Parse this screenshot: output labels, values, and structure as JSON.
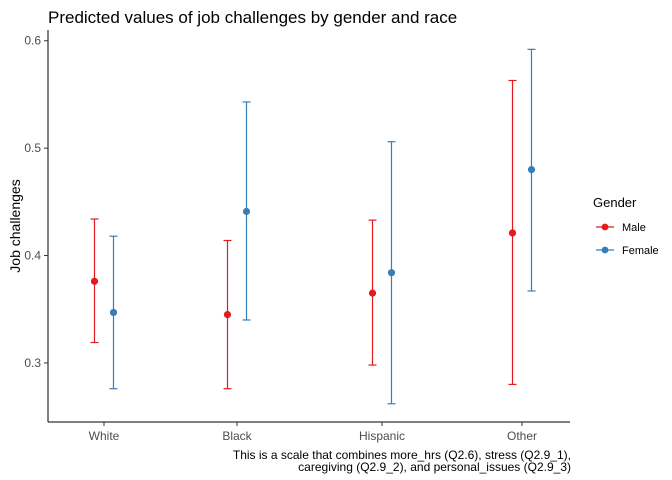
{
  "chart_data": {
    "type": "scatter",
    "title": "Predicted values of job challenges by gender and race",
    "xlabel": "",
    "ylabel": "Job challenges",
    "categories": [
      "White",
      "Black",
      "Hispanic",
      "Other"
    ],
    "ylim": [
      0.245,
      0.61
    ],
    "yticks": [
      0.3,
      0.4,
      0.5,
      0.6
    ],
    "yticklabels": [
      "0.3",
      "0.4",
      "0.5",
      "0.6"
    ],
    "grid": false,
    "legend": {
      "title": "Gender",
      "position": "right"
    },
    "series": [
      {
        "name": "Male",
        "color": "#e41a1c",
        "values": [
          0.376,
          0.345,
          0.365,
          0.421
        ],
        "lower": [
          0.319,
          0.276,
          0.298,
          0.28
        ],
        "upper": [
          0.434,
          0.414,
          0.433,
          0.563
        ]
      },
      {
        "name": "Female",
        "color": "#377eb8",
        "values": [
          0.347,
          0.441,
          0.384,
          0.48
        ],
        "lower": [
          0.276,
          0.34,
          0.262,
          0.367
        ],
        "upper": [
          0.418,
          0.543,
          0.506,
          0.592
        ]
      }
    ],
    "caption": [
      "This is a scale that combines more_hrs (Q2.6), stress (Q2.9_1),",
      "caregiving (Q2.9_2), and personal_issues (Q2.9_3)"
    ]
  }
}
